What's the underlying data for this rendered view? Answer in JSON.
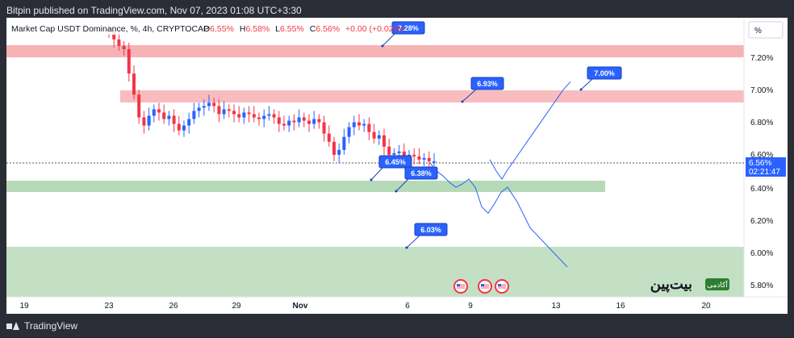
{
  "header": {
    "published": "Bitpin published on TradingView.com, Nov 07, 2023 01:08 UTC+3:30"
  },
  "legend": {
    "symbol": "Market Cap USDT Dominance, %, 4h, CRYPTOCAP",
    "open_label": "O",
    "open": "6.55%",
    "high_label": "H",
    "high": "6.58%",
    "low_label": "L",
    "low": "6.55%",
    "close_label": "C",
    "close": "6.56%",
    "change": "+0.00 (+0.02%)"
  },
  "price_axis": {
    "unit": "%",
    "ticks": [
      "7.20%",
      "7.00%",
      "6.80%",
      "6.60%",
      "6.40%",
      "6.20%",
      "6.00%",
      "5.80%"
    ],
    "current_price": "6.56%",
    "countdown": "02:21:47"
  },
  "time_axis": {
    "ticks": [
      "19",
      "23",
      "26",
      "29",
      "Nov",
      "6",
      "9",
      "13",
      "16",
      "20"
    ]
  },
  "zones": [
    {
      "type": "resistance",
      "from": 7.2,
      "to": 7.28
    },
    {
      "type": "resistance",
      "from": 6.93,
      "to": 7.0
    },
    {
      "type": "support",
      "from": 6.38,
      "to": 6.45
    },
    {
      "type": "support",
      "from": 5.8,
      "to": 6.03
    }
  ],
  "callouts": [
    "7.28%",
    "6.93%",
    "7.00%",
    "6.45%",
    "6.38%",
    "6.03%"
  ],
  "watermark": {
    "brand": "بیت‌پین",
    "badge": "آکادمی"
  },
  "footer": {
    "brand": "TradingView"
  },
  "colors": {
    "up": "#2962ff",
    "down": "#f23645",
    "resistance": "#f6a5a9",
    "support": "#a9d3ab",
    "callout": "#2962ff"
  },
  "chart_data": {
    "type": "candlestick",
    "title": "Market Cap USDT Dominance, %, 4h, CRYPTOCAP",
    "xlabel": "",
    "ylabel": "%",
    "ylim": [
      5.76,
      7.38
    ],
    "x_ticks": [
      "19",
      "23",
      "26",
      "29",
      "Nov",
      "6",
      "9",
      "13",
      "16",
      "20"
    ],
    "y_ticks": [
      7.2,
      7.0,
      6.8,
      6.6,
      6.4,
      6.2,
      6.0,
      5.8
    ],
    "close_path": [
      7.36,
      7.31,
      7.27,
      7.25,
      7.1,
      6.97,
      6.83,
      6.78,
      6.84,
      6.88,
      6.86,
      6.82,
      6.84,
      6.79,
      6.75,
      6.78,
      6.82,
      6.87,
      6.89,
      6.9,
      6.92,
      6.9,
      6.85,
      6.88,
      6.87,
      6.85,
      6.83,
      6.86,
      6.85,
      6.83,
      6.82,
      6.84,
      6.85,
      6.83,
      6.79,
      6.78,
      6.81,
      6.8,
      6.83,
      6.81,
      6.79,
      6.82,
      6.8,
      6.73,
      6.68,
      6.6,
      6.63,
      6.71,
      6.77,
      6.8,
      6.78,
      6.79,
      6.74,
      6.7,
      6.72,
      6.65,
      6.6,
      6.61,
      6.62,
      6.58,
      6.6,
      6.59,
      6.57,
      6.58,
      6.56,
      6.56
    ],
    "projection": [
      6.55,
      6.5,
      6.47,
      6.43,
      6.4,
      6.42,
      6.45,
      6.4,
      6.28,
      6.24,
      6.3,
      6.37,
      6.4,
      6.31,
      6.15,
      5.91
    ],
    "projection_alt": [
      6.57,
      6.5,
      6.45,
      6.5,
      6.6,
      6.7,
      6.8,
      6.9,
      7.0,
      7.05
    ]
  }
}
